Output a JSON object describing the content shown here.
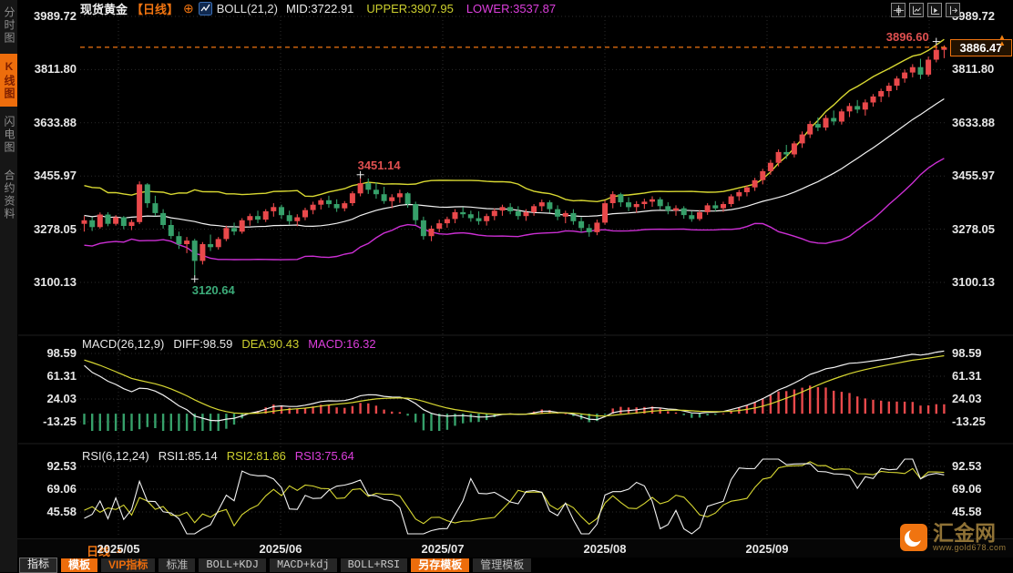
{
  "header": {
    "symbol": "现货黄金",
    "period": "【日线】",
    "indicator_title": "BOLL(21,2)",
    "mid": "MID:3722.91",
    "upper": "UPPER:3907.95",
    "lower": "LOWER:3537.87",
    "icons": [
      "crosshair",
      "zoom-axis",
      "play-axis",
      "collapse-panel"
    ]
  },
  "sidebar": {
    "items": [
      {
        "label": "分时图",
        "active": false
      },
      {
        "label": "K线图",
        "active": true
      },
      {
        "label": "闪电图",
        "active": false
      },
      {
        "label": "合约资料",
        "active": false
      }
    ]
  },
  "macd_panel": {
    "title": "MACD(26,12,9)",
    "diff": "DIFF:98.59",
    "dea": "DEA:90.43",
    "macd": "MACD:16.32",
    "axis_labels": [
      "98.59",
      "61.31",
      "24.03",
      "-13.25"
    ]
  },
  "rsi_panel": {
    "title": "RSI(6,12,24)",
    "rsi1": "RSI1:85.14",
    "rsi2": "RSI2:81.86",
    "rsi3": "RSI3:75.64",
    "axis_labels": [
      "92.53",
      "69.06",
      "45.58"
    ]
  },
  "xaxis": {
    "period": "日线",
    "dropdown_arrow": "▲",
    "months": [
      "2025/05",
      "2025/06",
      "2025/07",
      "2025/08",
      "2025/09"
    ]
  },
  "toolbar": {
    "buttons": [
      {
        "label": "指标",
        "variant": "dark-light"
      },
      {
        "label": "模板",
        "variant": "orange"
      },
      {
        "label": "VIP指标",
        "variant": "vip"
      },
      {
        "label": "标准",
        "variant": "plain"
      },
      {
        "label": "BOLL+KDJ",
        "variant": "mono"
      },
      {
        "label": "MACD+kdj",
        "variant": "mono"
      },
      {
        "label": "BOLL+RSI",
        "variant": "mono"
      },
      {
        "label": "另存模板",
        "variant": "orange"
      },
      {
        "label": "管理模板",
        "variant": "plain"
      }
    ]
  },
  "logo": {
    "title": "汇金网",
    "url": "www.gold678.com"
  },
  "annotations": {
    "swing_high": {
      "value": "3451.14",
      "index": 35
    },
    "swing_low": {
      "value": "3120.64",
      "index": 14
    },
    "recent_high": {
      "value": "3896.60",
      "index": 108
    },
    "last_price": {
      "value": "3886.47"
    }
  },
  "chart_data": {
    "type": "candlestick",
    "title": "现货黄金 日线 BOLL(21,2) + MACD(26,12,9) + RSI(6,12,24)",
    "main_axis_labels": [
      "3989.72",
      "3811.80",
      "3633.88",
      "3455.97",
      "3278.05",
      "3100.13"
    ],
    "colors": {
      "up": "#e9494b",
      "down": "#36a06a",
      "boll_mid": "#f2f2f2",
      "boll_upper": "#d8d832",
      "boll_lower": "#cc2fd4",
      "grid": "#2b2b2b",
      "accent": "#f07410",
      "macd_diff": "#f2f2f2",
      "macd_dea": "#d8d832",
      "rsi1": "#f2f2f2",
      "rsi2": "#d8d832",
      "rsi3": "#cc2fd4"
    },
    "indicators": {
      "boll": {
        "n": 21,
        "k": 2
      },
      "macd": {
        "fast": 12,
        "slow": 26,
        "signal": 9
      },
      "rsi": [
        6,
        12,
        24
      ]
    },
    "candles": [
      [
        3296,
        3322,
        3270,
        3308
      ],
      [
        3308,
        3318,
        3272,
        3285
      ],
      [
        3285,
        3334,
        3280,
        3327
      ],
      [
        3327,
        3335,
        3288,
        3296
      ],
      [
        3296,
        3325,
        3290,
        3318
      ],
      [
        3318,
        3322,
        3278,
        3289
      ],
      [
        3289,
        3310,
        3275,
        3302
      ],
      [
        3302,
        3438,
        3295,
        3428
      ],
      [
        3428,
        3432,
        3350,
        3365
      ],
      [
        3365,
        3390,
        3322,
        3332
      ],
      [
        3332,
        3345,
        3280,
        3292
      ],
      [
        3292,
        3310,
        3245,
        3255
      ],
      [
        3255,
        3270,
        3212,
        3228
      ],
      [
        3228,
        3252,
        3198,
        3240
      ],
      [
        3240,
        3246,
        3120.64,
        3172
      ],
      [
        3172,
        3235,
        3160,
        3228
      ],
      [
        3228,
        3260,
        3205,
        3218
      ],
      [
        3218,
        3252,
        3210,
        3245
      ],
      [
        3245,
        3290,
        3238,
        3282
      ],
      [
        3282,
        3300,
        3258,
        3270
      ],
      [
        3270,
        3315,
        3263,
        3308
      ],
      [
        3308,
        3330,
        3290,
        3322
      ],
      [
        3322,
        3340,
        3298,
        3310
      ],
      [
        3310,
        3345,
        3302,
        3338
      ],
      [
        3338,
        3365,
        3320,
        3352
      ],
      [
        3352,
        3360,
        3312,
        3325
      ],
      [
        3325,
        3340,
        3293,
        3305
      ],
      [
        3305,
        3328,
        3288,
        3318
      ],
      [
        3318,
        3350,
        3308,
        3342
      ],
      [
        3342,
        3370,
        3328,
        3360
      ],
      [
        3360,
        3382,
        3344,
        3375
      ],
      [
        3375,
        3390,
        3350,
        3362
      ],
      [
        3362,
        3378,
        3336,
        3348
      ],
      [
        3348,
        3372,
        3338,
        3365
      ],
      [
        3365,
        3405,
        3356,
        3398
      ],
      [
        3398,
        3451.14,
        3388,
        3432
      ],
      [
        3432,
        3448,
        3396,
        3410
      ],
      [
        3410,
        3435,
        3380,
        3395
      ],
      [
        3395,
        3420,
        3363,
        3372
      ],
      [
        3372,
        3395,
        3348,
        3385
      ],
      [
        3385,
        3410,
        3366,
        3398
      ],
      [
        3398,
        3402,
        3350,
        3362
      ],
      [
        3362,
        3370,
        3293,
        3308
      ],
      [
        3308,
        3320,
        3243,
        3255
      ],
      [
        3255,
        3290,
        3238,
        3280
      ],
      [
        3280,
        3310,
        3268,
        3298
      ],
      [
        3298,
        3320,
        3283,
        3312
      ],
      [
        3312,
        3345,
        3298,
        3335
      ],
      [
        3335,
        3352,
        3316,
        3328
      ],
      [
        3328,
        3340,
        3303,
        3315
      ],
      [
        3315,
        3338,
        3293,
        3305
      ],
      [
        3305,
        3330,
        3290,
        3322
      ],
      [
        3322,
        3348,
        3308,
        3340
      ],
      [
        3340,
        3360,
        3323,
        3352
      ],
      [
        3352,
        3365,
        3328,
        3338
      ],
      [
        3338,
        3355,
        3310,
        3322
      ],
      [
        3322,
        3345,
        3306,
        3335
      ],
      [
        3335,
        3362,
        3323,
        3355
      ],
      [
        3355,
        3377,
        3338,
        3368
      ],
      [
        3368,
        3375,
        3333,
        3345
      ],
      [
        3345,
        3358,
        3308,
        3320
      ],
      [
        3320,
        3340,
        3298,
        3332
      ],
      [
        3332,
        3345,
        3293,
        3305
      ],
      [
        3305,
        3318,
        3268,
        3282
      ],
      [
        3282,
        3295,
        3253,
        3268
      ],
      [
        3268,
        3310,
        3258,
        3300
      ],
      [
        3300,
        3375,
        3293,
        3365
      ],
      [
        3365,
        3405,
        3348,
        3395
      ],
      [
        3395,
        3400,
        3353,
        3368
      ],
      [
        3368,
        3385,
        3338,
        3352
      ],
      [
        3352,
        3372,
        3333,
        3362
      ],
      [
        3362,
        3380,
        3346,
        3370
      ],
      [
        3370,
        3388,
        3353,
        3378
      ],
      [
        3378,
        3385,
        3343,
        3355
      ],
      [
        3355,
        3368,
        3328,
        3340
      ],
      [
        3340,
        3358,
        3323,
        3348
      ],
      [
        3348,
        3355,
        3313,
        3325
      ],
      [
        3325,
        3338,
        3303,
        3312
      ],
      [
        3312,
        3342,
        3306,
        3335
      ],
      [
        3335,
        3365,
        3326,
        3358
      ],
      [
        3358,
        3372,
        3338,
        3348
      ],
      [
        3348,
        3370,
        3336,
        3362
      ],
      [
        3362,
        3395,
        3353,
        3388
      ],
      [
        3388,
        3410,
        3373,
        3402
      ],
      [
        3402,
        3425,
        3388,
        3418
      ],
      [
        3418,
        3450,
        3406,
        3442
      ],
      [
        3442,
        3480,
        3428,
        3472
      ],
      [
        3472,
        3510,
        3460,
        3500
      ],
      [
        3500,
        3545,
        3488,
        3536
      ],
      [
        3536,
        3560,
        3513,
        3528
      ],
      [
        3528,
        3572,
        3518,
        3565
      ],
      [
        3565,
        3605,
        3550,
        3595
      ],
      [
        3595,
        3640,
        3583,
        3630
      ],
      [
        3630,
        3652,
        3606,
        3618
      ],
      [
        3618,
        3660,
        3608,
        3650
      ],
      [
        3650,
        3675,
        3626,
        3638
      ],
      [
        3638,
        3680,
        3628,
        3672
      ],
      [
        3672,
        3700,
        3653,
        3690
      ],
      [
        3690,
        3710,
        3666,
        3678
      ],
      [
        3678,
        3712,
        3658,
        3702
      ],
      [
        3702,
        3730,
        3688,
        3722
      ],
      [
        3722,
        3748,
        3703,
        3740
      ],
      [
        3740,
        3768,
        3720,
        3758
      ],
      [
        3758,
        3790,
        3743,
        3782
      ],
      [
        3782,
        3812,
        3768,
        3802
      ],
      [
        3802,
        3830,
        3786,
        3820
      ],
      [
        3820,
        3848,
        3780,
        3795
      ],
      [
        3795,
        3855,
        3788,
        3845
      ],
      [
        3845,
        3896.6,
        3836,
        3878
      ],
      [
        3878,
        3893,
        3850,
        3886.47
      ]
    ]
  }
}
